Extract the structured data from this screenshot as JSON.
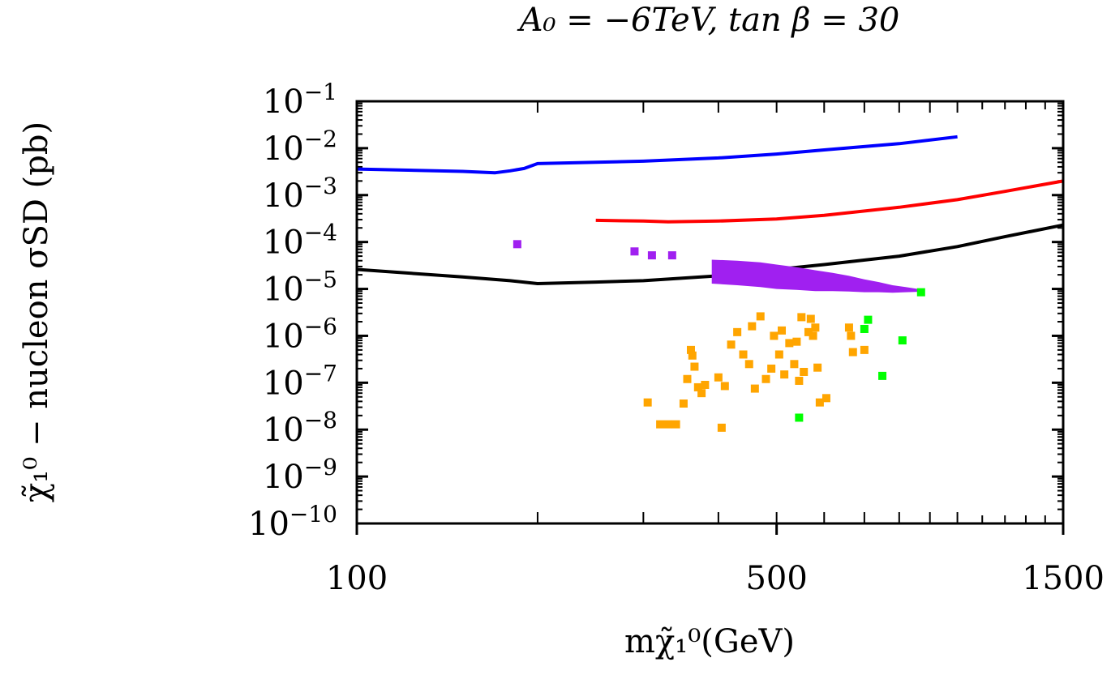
{
  "chart_data": {
    "type": "scatter",
    "title": "A₀ = −6TeV, tan β = 30",
    "xlabel": "mχ̃₁⁰(GeV)",
    "ylabel": "χ̃₁⁰ − nucleon σSD (pb)",
    "xscale": "log",
    "yscale": "log",
    "xlim": [
      100,
      1500
    ],
    "ylim": [
      1e-10,
      0.1
    ],
    "x_ticks": [
      {
        "value": 100,
        "label": "100"
      },
      {
        "value": 500,
        "label": "500"
      },
      {
        "value": 1500,
        "label": "1500"
      }
    ],
    "y_ticks": [
      {
        "value": 0.1,
        "base": "10",
        "exp": "−1"
      },
      {
        "value": 0.01,
        "base": "10",
        "exp": "−2"
      },
      {
        "value": 0.001,
        "base": "10",
        "exp": "−3"
      },
      {
        "value": 0.0001,
        "base": "10",
        "exp": "−4"
      },
      {
        "value": 1e-05,
        "base": "10",
        "exp": "−5"
      },
      {
        "value": 1e-06,
        "base": "10",
        "exp": "−6"
      },
      {
        "value": 1e-07,
        "base": "10",
        "exp": "−7"
      },
      {
        "value": 1e-08,
        "base": "10",
        "exp": "−8"
      },
      {
        "value": 1e-09,
        "base": "10",
        "exp": "−9"
      },
      {
        "value": 1e-10,
        "base": "10",
        "exp": "−10"
      }
    ],
    "lines": [
      {
        "name": "limit-blue",
        "color": "#0000ff",
        "x": [
          100,
          150,
          170,
          180,
          190,
          200,
          250,
          300,
          400,
          500,
          600,
          800,
          1000
        ],
        "y": [
          0.0036,
          0.0032,
          0.003,
          0.0033,
          0.0037,
          0.0047,
          0.005,
          0.0053,
          0.0062,
          0.0075,
          0.0092,
          0.0125,
          0.0175
        ]
      },
      {
        "name": "limit-red",
        "color": "#ff0000",
        "x": [
          250,
          300,
          330,
          400,
          500,
          600,
          800,
          1000,
          1200,
          1500
        ],
        "y": [
          0.00029,
          0.00028,
          0.00027,
          0.00028,
          0.00031,
          0.00037,
          0.00055,
          0.0008,
          0.0012,
          0.002
        ]
      },
      {
        "name": "limit-black",
        "color": "#000000",
        "x": [
          100,
          150,
          180,
          200,
          250,
          300,
          400,
          500,
          600,
          800,
          1000,
          1200,
          1500
        ],
        "y": [
          2.6e-05,
          1.8e-05,
          1.5e-05,
          1.3e-05,
          1.4e-05,
          1.5e-05,
          1.9e-05,
          2.6e-05,
          3.3e-05,
          5e-05,
          8e-05,
          0.00013,
          0.00023
        ]
      }
    ],
    "series": [
      {
        "name": "purple",
        "color": "#a020f0",
        "points": [
          [
            185,
            9e-05
          ],
          [
            290,
            6.3e-05
          ],
          [
            310,
            5.2e-05
          ],
          [
            335,
            5.2e-05
          ]
        ],
        "band": {
          "x": [
            390,
            430,
            470,
            500,
            540,
            580,
            620,
            660,
            700,
            740,
            780,
            820,
            860
          ],
          "ymin": [
            1.3e-05,
            1.2e-05,
            1.1e-05,
            1e-05,
            9.5e-06,
            9e-06,
            9e-06,
            8.8e-06,
            8.5e-06,
            8.5e-06,
            8.3e-06,
            8.5e-06,
            8.7e-06
          ],
          "ymax": [
            4.2e-05,
            4e-05,
            3.7e-05,
            3.3e-05,
            2.9e-05,
            2.5e-05,
            2.2e-05,
            1.9e-05,
            1.6e-05,
            1.4e-05,
            1.2e-05,
            1.1e-05,
            1e-05
          ]
        }
      },
      {
        "name": "orange",
        "color": "#ffa500",
        "points": [
          [
            305,
            3.8e-08
          ],
          [
            320,
            1.3e-08
          ],
          [
            330,
            1.3e-08
          ],
          [
            340,
            1.3e-08
          ],
          [
            350,
            3.6e-08
          ],
          [
            355,
            1.2e-07
          ],
          [
            360,
            5e-07
          ],
          [
            362,
            3.8e-07
          ],
          [
            365,
            2.2e-07
          ],
          [
            370,
            8e-08
          ],
          [
            375,
            6e-08
          ],
          [
            380,
            9e-08
          ],
          [
            400,
            1.3e-07
          ],
          [
            405,
            1.1e-08
          ],
          [
            410,
            8.5e-08
          ],
          [
            420,
            6.5e-07
          ],
          [
            430,
            1.2e-06
          ],
          [
            440,
            4e-07
          ],
          [
            450,
            2.5e-07
          ],
          [
            455,
            1.6e-06
          ],
          [
            460,
            7.5e-08
          ],
          [
            470,
            2.6e-06
          ],
          [
            480,
            1.2e-07
          ],
          [
            490,
            2e-07
          ],
          [
            495,
            1e-06
          ],
          [
            505,
            4e-07
          ],
          [
            510,
            1.3e-06
          ],
          [
            515,
            1.5e-07
          ],
          [
            525,
            7e-07
          ],
          [
            535,
            2.5e-07
          ],
          [
            540,
            7.5e-07
          ],
          [
            545,
            1.1e-07
          ],
          [
            550,
            2.5e-06
          ],
          [
            555,
            1.7e-07
          ],
          [
            565,
            1.2e-06
          ],
          [
            570,
            2.3e-06
          ],
          [
            575,
            1e-06
          ],
          [
            580,
            1.5e-06
          ],
          [
            585,
            2.1e-07
          ],
          [
            590,
            3.8e-08
          ],
          [
            605,
            4.7e-08
          ],
          [
            660,
            1.5e-06
          ],
          [
            665,
            1e-06
          ],
          [
            670,
            4.5e-07
          ],
          [
            700,
            5e-07
          ]
        ]
      },
      {
        "name": "green",
        "color": "#00ff00",
        "points": [
          [
            545,
            1.8e-08
          ],
          [
            700,
            1.4e-06
          ],
          [
            710,
            2.2e-06
          ],
          [
            750,
            1.4e-07
          ],
          [
            810,
            8e-07
          ],
          [
            870,
            8.5e-06
          ]
        ]
      }
    ]
  }
}
